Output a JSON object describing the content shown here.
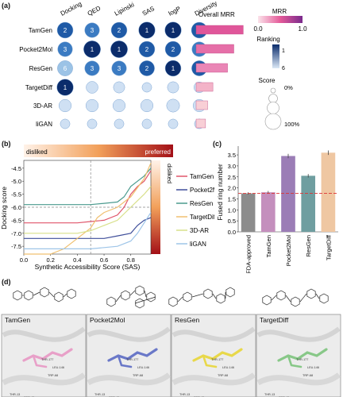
{
  "panel_labels": {
    "a": "(a)",
    "b": "(b)",
    "c": "(c)",
    "d": "(d)"
  },
  "panel_a": {
    "metrics": [
      "Docking",
      "QED",
      "Lipinski",
      "SAS",
      "logP",
      "Diversity"
    ],
    "overall_header": "Overall MRR",
    "models": [
      {
        "name": "TamGen",
        "ranks": [
          "2",
          "3",
          "2",
          "1",
          "1",
          "2"
        ],
        "scores": [
          0.85,
          0.75,
          0.85,
          0.9,
          0.9,
          0.85
        ],
        "mrr": 0.9
      },
      {
        "name": "Pocket2Mol",
        "ranks": [
          "3",
          "1",
          "1",
          "2",
          "2",
          "3"
        ],
        "scores": [
          0.75,
          0.95,
          0.95,
          0.85,
          0.85,
          0.75
        ],
        "mrr": 0.72
      },
      {
        "name": "ResGen",
        "ranks": [
          "6",
          "3",
          "3",
          "2",
          "1",
          "2"
        ],
        "scores": [
          0.8,
          0.75,
          0.75,
          0.8,
          0.85,
          0.8
        ],
        "mrr": 0.6
      },
      {
        "name": "TargetDiff",
        "ranks": [
          "1",
          "",
          "",
          "",
          "",
          ""
        ],
        "scores": [
          0.9,
          0.5,
          0.45,
          0.3,
          0.45,
          0.4
        ],
        "mrr": 0.32
      },
      {
        "name": "3D-AR",
        "ranks": [
          "",
          "",
          "",
          "",
          "",
          ""
        ],
        "scores": [
          0.55,
          0.55,
          0.55,
          0.55,
          0.6,
          0.55
        ],
        "mrr": 0.22
      },
      {
        "name": "liGAN",
        "ranks": [
          "",
          "",
          "",
          "",
          "",
          ""
        ],
        "scores": [
          0.3,
          0.3,
          0.3,
          0.3,
          0.3,
          0.3
        ],
        "mrr": 0.18
      }
    ],
    "mrr_legend": {
      "title": "MRR",
      "min": "0.0",
      "max": "1.0"
    },
    "ranking_legend": {
      "title": "Ranking",
      "top": "1",
      "bottom": "6"
    },
    "score_legend": {
      "title": "Score",
      "low": "0%",
      "high": "100%"
    }
  },
  "chart_data": [
    {
      "type": "line",
      "title": "",
      "xlabel": "Synthetic Accessibility Score (SAS)",
      "ylabel": "Docking score",
      "xlim": [
        0.0,
        0.95
      ],
      "ylim": [
        -7.8,
        -4.2
      ],
      "x_ticks": [
        "0.0",
        "0.2",
        "0.4",
        "0.6",
        "0.8"
      ],
      "y_ticks": [
        "-4.5",
        "-5.0",
        "-5.5",
        "-6.0",
        "-6.5",
        "-7.0",
        "-7.5"
      ],
      "top_band": {
        "left": "disliked",
        "right": "preferred"
      },
      "side_band": {
        "top": "disliked",
        "bottom": "preferred"
      },
      "reference_lines": {
        "x": 0.5,
        "y": -6.0
      },
      "legend_position": "right",
      "series": [
        {
          "name": "TamGen",
          "color": "#e0566b",
          "x": [
            0.0,
            0.1,
            0.2,
            0.3,
            0.4,
            0.5,
            0.6,
            0.7,
            0.75,
            0.8,
            0.85,
            0.9,
            0.95
          ],
          "y": [
            -6.6,
            -6.6,
            -6.6,
            -6.6,
            -6.6,
            -6.55,
            -6.5,
            -6.3,
            -6.0,
            -5.5,
            -5.2,
            -5.0,
            -4.6
          ]
        },
        {
          "name": "Pocket2Mol",
          "color": "#3f4e9a",
          "x": [
            0.0,
            0.1,
            0.2,
            0.3,
            0.4,
            0.5,
            0.6,
            0.7,
            0.8,
            0.85,
            0.9,
            0.95
          ],
          "y": [
            -7.2,
            -7.2,
            -7.2,
            -7.2,
            -7.2,
            -7.2,
            -7.2,
            -7.1,
            -7.0,
            -6.7,
            -6.5,
            -6.4
          ]
        },
        {
          "name": "ResGen",
          "color": "#4a9a8e",
          "x": [
            0.0,
            0.1,
            0.2,
            0.3,
            0.4,
            0.5,
            0.6,
            0.7,
            0.75,
            0.8,
            0.85,
            0.9,
            0.95
          ],
          "y": [
            -5.9,
            -5.9,
            -5.9,
            -5.9,
            -5.9,
            -5.9,
            -5.85,
            -5.8,
            -5.6,
            -5.2,
            -5.0,
            -4.8,
            -4.5
          ]
        },
        {
          "name": "TargetDiff",
          "color": "#f0c070",
          "x": [
            0.0,
            0.2,
            0.3,
            0.4,
            0.5,
            0.55,
            0.6,
            0.7,
            0.8,
            0.9,
            0.95
          ],
          "y": [
            -7.8,
            -7.8,
            -7.6,
            -7.2,
            -6.8,
            -6.4,
            -6.2,
            -6.0,
            -5.6,
            -4.9,
            -4.3
          ]
        },
        {
          "name": "3D-AR",
          "color": "#d8e08a",
          "x": [
            0.0,
            0.2,
            0.3,
            0.4,
            0.5,
            0.6,
            0.7,
            0.8,
            0.9,
            0.95
          ],
          "y": [
            -7.0,
            -7.0,
            -7.0,
            -7.0,
            -6.9,
            -6.7,
            -6.5,
            -6.0,
            -5.5,
            -5.2
          ]
        },
        {
          "name": "liGAN",
          "color": "#9ec5e8",
          "x": [
            0.0,
            0.2,
            0.3,
            0.4,
            0.5,
            0.6,
            0.7,
            0.8,
            0.85,
            0.9,
            0.95
          ],
          "y": [
            -7.6,
            -7.6,
            -7.6,
            -7.6,
            -7.6,
            -7.55,
            -7.5,
            -7.3,
            -7.0,
            -6.6,
            -6.2
          ]
        }
      ]
    },
    {
      "type": "bar",
      "title": "",
      "xlabel": "",
      "ylabel": "Fused ring number",
      "ylim": [
        0.0,
        3.9
      ],
      "y_ticks": [
        "0.0",
        "0.5",
        "1.0",
        "1.5",
        "2.0",
        "2.5",
        "3.0",
        "3.5"
      ],
      "categories": [
        "FDA-approved",
        "TamGen",
        "Pocket2Mol",
        "ResGen",
        "TargetDiff"
      ],
      "values": [
        1.75,
        1.8,
        3.45,
        2.55,
        3.6
      ],
      "errors": [
        0.05,
        0.06,
        0.1,
        0.08,
        0.1
      ],
      "colors": [
        "#8c8c8c",
        "#c48fbd",
        "#9b7db6",
        "#6f9ea0",
        "#efc7a2"
      ],
      "reference_line": 1.75
    }
  ],
  "panel_d": {
    "panels": [
      {
        "label": "TamGen",
        "ligand": "#e8a0c8",
        "residues": [
          "THR-177",
          "LEU-146",
          "TRP-68",
          "THR-13",
          "SER-42",
          "GLY-43",
          "ALA-0",
          "ASP-64",
          "PRO-14"
        ]
      },
      {
        "label": "Pocket2Mol",
        "ligand": "#6a78c8",
        "residues": [
          "THR-177",
          "LEU-146",
          "TRP-68",
          "THR-13",
          "SER-42",
          "GLY-43",
          "ALA-0",
          "ASP-64",
          "PRO-14"
        ]
      },
      {
        "label": "ResGen",
        "ligand": "#e8d84a",
        "residues": [
          "THR-177",
          "LEU-146",
          "TRP-68",
          "THR-13",
          "SER-42",
          "GLY-43",
          "ALA-0",
          "ASP-64",
          "PRO-14"
        ]
      },
      {
        "label": "TargetDiff",
        "ligand": "#88c888",
        "residues": [
          "THR-177",
          "LEU-146",
          "TRP-68",
          "THR-13",
          "SER-42",
          "GLY-43",
          "ALA-0",
          "ASP-64",
          "PRO-14"
        ]
      }
    ]
  }
}
